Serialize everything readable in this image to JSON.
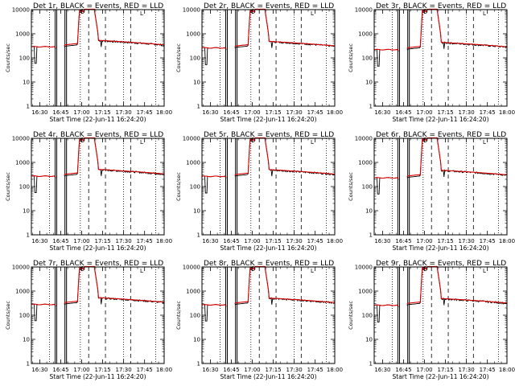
{
  "figure_kind": "RHESSI detector count-rate quicklook",
  "colors": {
    "events": "#000000",
    "lld": "#dd0000",
    "axes": "#000000"
  },
  "chart_data": {
    "type": "line",
    "yscale": "log",
    "ylim": [
      1,
      10000
    ],
    "ytick_values": [
      1,
      10,
      100,
      1000,
      10000
    ],
    "ytick_labels": [
      "1",
      "10",
      "100",
      "1000",
      "10000"
    ],
    "xlim_min": [
      0,
      95
    ],
    "xtick_minutes": [
      6,
      21,
      36,
      51,
      66,
      81,
      96
    ],
    "xtick_labels": [
      "16:30",
      "16:45",
      "17:00",
      "17:15",
      "17:30",
      "17:45",
      "18:00"
    ],
    "xlabel": "Start Time (22-Jun-11 16:24:20)",
    "ylabel": "Counts/sec",
    "legend_marker": "L",
    "dotted_markers_min": [
      13,
      35,
      66,
      89
    ],
    "dashed_markers_min": [
      41,
      53,
      71
    ],
    "data_gap_min": [
      17,
      24
    ],
    "series": [
      {
        "name": "Events",
        "color_key": "events"
      },
      {
        "name": "LLD",
        "color_key": "lld"
      }
    ],
    "panels": [
      {
        "title": "Det 1r, BLACK = Events, RED = LLD",
        "base": 290,
        "drop": 170,
        "level2": 520
      },
      {
        "title": "Det 2r, BLACK = Events, RED = LLD",
        "base": 260,
        "drop": 150,
        "level2": 470
      },
      {
        "title": "Det 3r, BLACK = Events, RED = LLD",
        "base": 220,
        "drop": 130,
        "level2": 430
      },
      {
        "title": "Det 4r, BLACK = Events, RED = LLD",
        "base": 270,
        "drop": 160,
        "level2": 500
      },
      {
        "title": "Det 5r, BLACK = Events, RED = LLD",
        "base": 265,
        "drop": 155,
        "level2": 490
      },
      {
        "title": "Det 6r, BLACK = Events, RED = LLD",
        "base": 230,
        "drop": 140,
        "level2": 460
      },
      {
        "title": "Det 7r, BLACK = Events, RED = LLD",
        "base": 280,
        "drop": 170,
        "level2": 520
      },
      {
        "title": "Det 8r, BLACK = Events, RED = LLD",
        "base": 270,
        "drop": 165,
        "level2": 500
      },
      {
        "title": "Det 9r, BLACK = Events, RED = LLD",
        "base": 260,
        "drop": 150,
        "level2": 480
      }
    ]
  }
}
